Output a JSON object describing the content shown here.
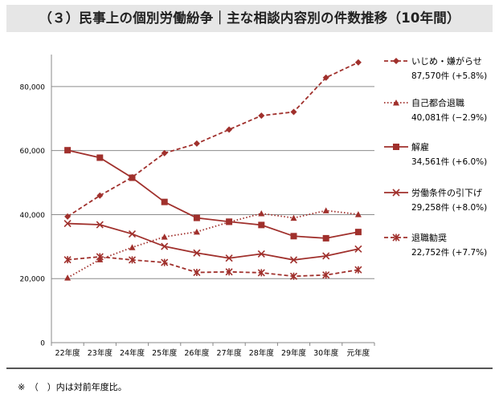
{
  "title": "（３）民事上の個別労働紛争｜主な相談内容別の件数推移（10年間）",
  "footnote": "※　（　）内は対前年度比。",
  "chart_data": {
    "type": "line",
    "categories": [
      "22年度",
      "23年度",
      "24年度",
      "25年度",
      "26年度",
      "27年度",
      "28年度",
      "29年度",
      "30年度",
      "元年度"
    ],
    "ylim": [
      0,
      90000
    ],
    "yticks": [
      0,
      20000,
      40000,
      60000,
      80000
    ],
    "ytick_labels": [
      "0",
      "20,000",
      "40,000",
      "60,000",
      "80,000"
    ],
    "grid": true,
    "legend_position": "right",
    "line_color": "#a0302c",
    "series": [
      {
        "name": "いじめ・嫌がらせ",
        "detail": "87,570件 (+5.8%)",
        "marker": "diamond",
        "dash": "dashed",
        "values": [
          39405,
          45939,
          51670,
          59197,
          62191,
          66566,
          70917,
          72067,
          82797,
          87570
        ]
      },
      {
        "name": "自己都合退職",
        "detail": "40,081件 (−2.9%)",
        "marker": "triangle",
        "dash": "dotted",
        "values": [
          20265,
          25966,
          29763,
          33049,
          34626,
          37648,
          40364,
          38954,
          41258,
          40081
        ]
      },
      {
        "name": "解雇",
        "detail": "34,561件 (+6.0%)",
        "marker": "square",
        "dash": "solid",
        "values": [
          60118,
          57785,
          51515,
          43956,
          38966,
          37787,
          36760,
          33269,
          32614,
          34561
        ]
      },
      {
        "name": "労働条件の引下げ",
        "detail": "29,258件 (+8.0%)",
        "marker": "x",
        "dash": "solid",
        "values": [
          37210,
          36849,
          33955,
          30067,
          28015,
          26392,
          27723,
          25841,
          27082,
          29258
        ]
      },
      {
        "name": "退職勧奨",
        "detail": "22,752件 (+7.7%)",
        "marker": "asterisk",
        "dash": "dashed",
        "values": [
          25902,
          26828,
          25838,
          25041,
          21928,
          22110,
          21841,
          20736,
          21125,
          22752
        ]
      }
    ]
  }
}
